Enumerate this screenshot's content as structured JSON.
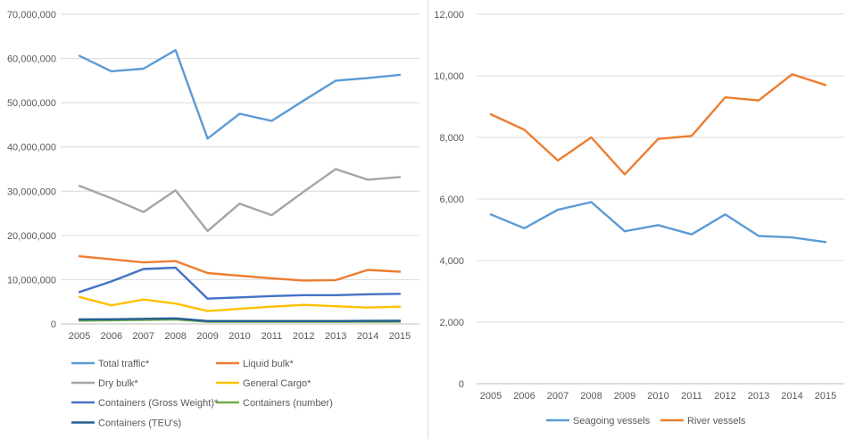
{
  "page": {
    "background": "#ffffff",
    "divider_color": "#d9d9d9"
  },
  "chart_data": [
    {
      "id": "cargo-traffic",
      "type": "line",
      "title": "",
      "xlabel": "",
      "ylabel": "",
      "categories": [
        "2005",
        "2006",
        "2007",
        "2008",
        "2009",
        "2010",
        "2011",
        "2012",
        "2013",
        "2014",
        "2015"
      ],
      "ylim": [
        0,
        70000000
      ],
      "ytick_labels": [
        "0",
        "10,000,000",
        "20,000,000",
        "30,000,000",
        "40,000,000",
        "50,000,000",
        "60,000,000",
        "70,000,000"
      ],
      "grid": true,
      "legend_position": "bottom-left, two columns",
      "style": {
        "grid_color": "#d9d9d9",
        "axis_color": "#bfbfbf",
        "text_color": "#595959"
      },
      "series": [
        {
          "name": "Total traffic*",
          "color": "#5B9BD5",
          "values": [
            60600000,
            57100000,
            57700000,
            61900000,
            41900000,
            47500000,
            45900000,
            50500000,
            55000000,
            55600000,
            56300000
          ]
        },
        {
          "name": "Liquid bulk*",
          "color": "#ED7D31",
          "values": [
            15300000,
            14600000,
            13900000,
            14200000,
            11500000,
            10900000,
            10300000,
            9800000,
            9900000,
            12200000,
            11800000
          ]
        },
        {
          "name": "Dry bulk*",
          "color": "#A5A5A5",
          "values": [
            31200000,
            28400000,
            25300000,
            30200000,
            21000000,
            27200000,
            24600000,
            29900000,
            35000000,
            32600000,
            33200000
          ]
        },
        {
          "name": "General Cargo*",
          "color": "#FFC000",
          "values": [
            6100000,
            4200000,
            5500000,
            4600000,
            2900000,
            3400000,
            3900000,
            4300000,
            4000000,
            3700000,
            3900000
          ]
        },
        {
          "name": "Containers (Gross Weight)*",
          "color": "#4472C4",
          "values": [
            7200000,
            9600000,
            12400000,
            12700000,
            5700000,
            6000000,
            6300000,
            6500000,
            6500000,
            6700000,
            6800000
          ]
        },
        {
          "name": "Containers (number)",
          "color": "#70AD47",
          "values": [
            750000,
            800000,
            900000,
            1000000,
            500000,
            500000,
            500000,
            500000,
            500000,
            500000,
            500000
          ]
        },
        {
          "name": "Containers (TEU's)",
          "color": "#255E91",
          "values": [
            1000000,
            1050000,
            1150000,
            1250000,
            650000,
            650000,
            650000,
            650000,
            650000,
            680000,
            700000
          ]
        }
      ]
    },
    {
      "id": "vessels",
      "type": "line",
      "title": "",
      "xlabel": "",
      "ylabel": "",
      "categories": [
        "2005",
        "2006",
        "2007",
        "2008",
        "2009",
        "2010",
        "2011",
        "2012",
        "2013",
        "2014",
        "2015"
      ],
      "ylim": [
        0,
        12000
      ],
      "ytick_labels": [
        "0",
        "2,000",
        "4,000",
        "6,000",
        "8,000",
        "10,000",
        "12,000"
      ],
      "grid": true,
      "legend_position": "bottom-center, horizontal",
      "style": {
        "grid_color": "#d9d9d9",
        "axis_color": "#bfbfbf",
        "text_color": "#595959"
      },
      "series": [
        {
          "name": "Seagoing vessels",
          "color": "#5B9BD5",
          "values": [
            5500,
            5050,
            5650,
            5900,
            4950,
            5150,
            4850,
            5500,
            4800,
            4750,
            4600
          ]
        },
        {
          "name": "River vessels",
          "color": "#ED7D31",
          "values": [
            8750,
            8250,
            7250,
            8000,
            6800,
            7950,
            8050,
            9300,
            9200,
            10050,
            9700
          ]
        }
      ]
    }
  ]
}
